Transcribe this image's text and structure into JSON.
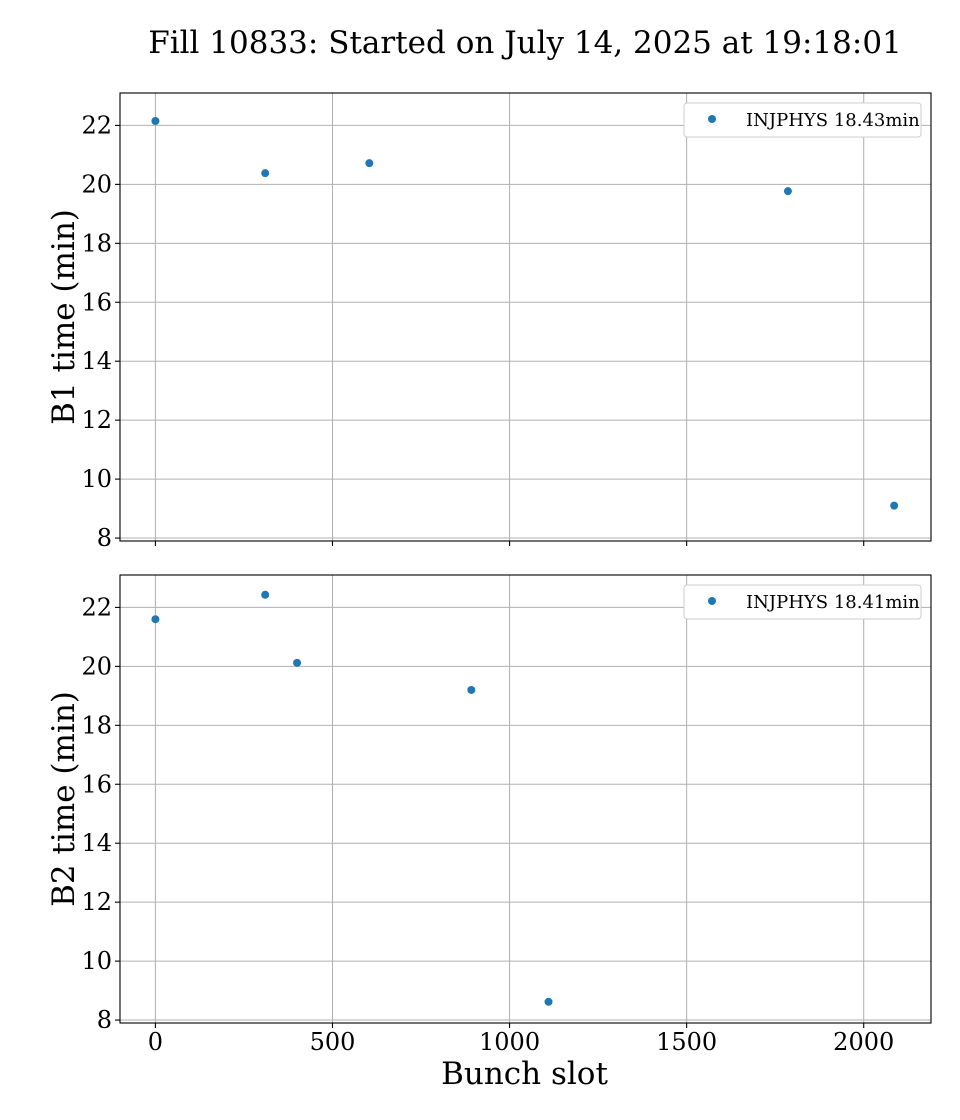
{
  "title": "Fill 10833: Started on July 14, 2025 at 19:18:01",
  "colors": {
    "marker": "#1f77b4",
    "grid": "#b0b0b0"
  },
  "chart_data": [
    {
      "type": "scatter",
      "xlabel": "",
      "ylabel": "B1 time (min)",
      "xlim": [
        -100,
        2190
      ],
      "ylim": [
        7.9,
        23.1
      ],
      "x_ticks": [
        0,
        500,
        1000,
        1500,
        2000
      ],
      "x_tick_labels_visible": false,
      "y_ticks": [
        8,
        10,
        12,
        14,
        16,
        18,
        20,
        22
      ],
      "grid": true,
      "legend_position": "upper right",
      "series": [
        {
          "name": "INJPHYS 18.43min",
          "x": [
            0,
            310,
            604,
            1786,
            2086
          ],
          "y": [
            22.15,
            20.38,
            20.72,
            19.77,
            9.1
          ]
        }
      ]
    },
    {
      "type": "scatter",
      "xlabel": "Bunch slot",
      "ylabel": "B2 time (min)",
      "xlim": [
        -100,
        2190
      ],
      "ylim": [
        7.9,
        23.1
      ],
      "x_ticks": [
        0,
        500,
        1000,
        1500,
        2000
      ],
      "x_tick_labels_visible": true,
      "y_ticks": [
        8,
        10,
        12,
        14,
        16,
        18,
        20,
        22
      ],
      "grid": true,
      "legend_position": "upper right",
      "series": [
        {
          "name": "INJPHYS 18.41min",
          "x": [
            0,
            310,
            400,
            892,
            1110
          ],
          "y": [
            21.6,
            22.43,
            20.12,
            19.2,
            8.62
          ]
        }
      ]
    }
  ]
}
